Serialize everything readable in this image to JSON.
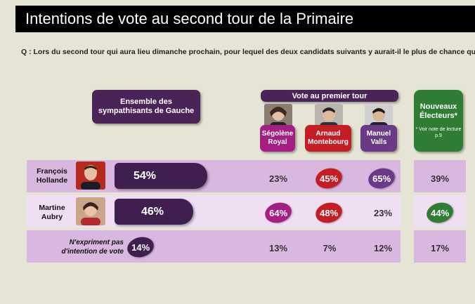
{
  "title": "Intentions de vote au second tour de la Primaire",
  "question": "Q : Lors du second tour qui aura lieu dimanche prochain, pour lequel des deux candidats suivants y aurait-il le plus de chance que vous votiez ?",
  "headers": {
    "ensemble": "Ensemble des sympathisants de Gauche",
    "vote_premier_tour": "Vote au premier tour",
    "candidates": [
      {
        "label": "Ségolène Royal",
        "color": "#a51e82"
      },
      {
        "label": "Arnaud Montebourg",
        "color": "#c41e24"
      },
      {
        "label": "Manuel Valls",
        "color": "#6a3a86"
      }
    ],
    "nouveaux": "Nouveaux Électeurs*",
    "nouveaux_note": "* Voir note de lecture p.9"
  },
  "rows": [
    {
      "label": "François Hollande",
      "ensemble": "54%",
      "royal": "23%",
      "montebourg": "45%",
      "valls": "65%",
      "nouveaux": "39%"
    },
    {
      "label": "Martine Aubry",
      "ensemble": "46%",
      "royal": "64%",
      "montebourg": "48%",
      "valls": "23%",
      "nouveaux": "44%"
    },
    {
      "label": "N'expriment pas d'intention de vote",
      "ensemble": "14%",
      "royal": "13%",
      "montebourg": "7%",
      "valls": "12%",
      "nouveaux": "17%"
    }
  ],
  "colors": {
    "purple_dark": "#3f1f4f",
    "royal": "#a51e82",
    "montebourg": "#c41e24",
    "valls": "#6a3a86",
    "nouveaux": "#2e7d32"
  },
  "chart_data": {
    "type": "table",
    "title": "Intentions de vote au second tour de la Primaire",
    "columns": [
      "Ensemble des sympathisants de Gauche",
      "Ségolène Royal",
      "Arnaud Montebourg",
      "Manuel Valls",
      "Nouveaux Électeurs*"
    ],
    "categories": [
      "François Hollande",
      "Martine Aubry",
      "N'expriment pas d'intention de vote"
    ],
    "series": [
      {
        "name": "Ensemble des sympathisants de Gauche",
        "values": [
          54,
          46,
          14
        ]
      },
      {
        "name": "Ségolène Royal",
        "values": [
          23,
          64,
          13
        ]
      },
      {
        "name": "Arnaud Montebourg",
        "values": [
          45,
          48,
          7
        ]
      },
      {
        "name": "Manuel Valls",
        "values": [
          65,
          23,
          12
        ]
      },
      {
        "name": "Nouveaux Électeurs*",
        "values": [
          39,
          44,
          17
        ]
      }
    ]
  }
}
